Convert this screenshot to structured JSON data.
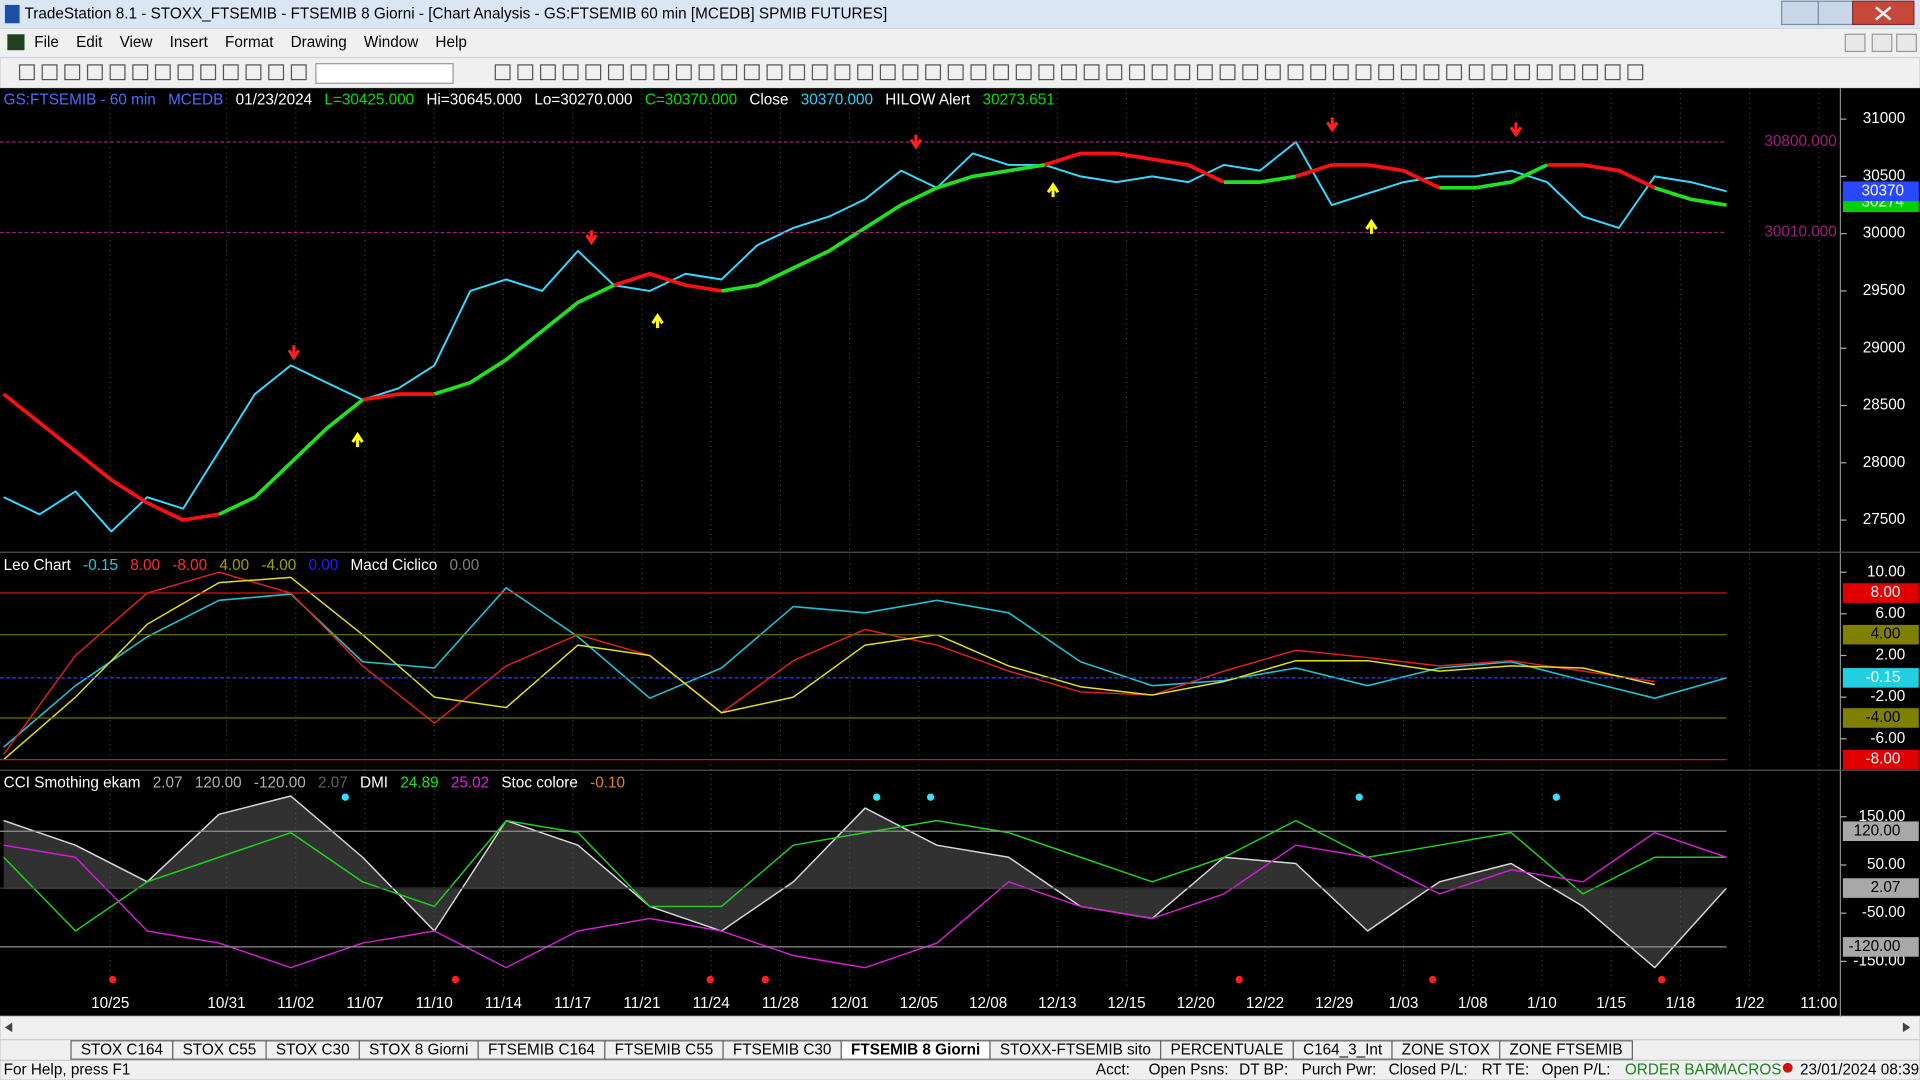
{
  "window": {
    "title": "TradeStation 8.1 - STOXX_FTSEMIB - FTSEMIB  8 Giorni - [Chart Analysis - GS:FTSEMIB  60 min  [MCEDB] SPMIB FUTURES]"
  },
  "menu": [
    "File",
    "Edit",
    "View",
    "Insert",
    "Format",
    "Drawing",
    "Window",
    "Help"
  ],
  "chart_data": [
    {
      "type": "line",
      "header": [
        {
          "text": "GS:FTSEMIB - 60 min",
          "color": "#4a6cff"
        },
        {
          "text": "MCEDB",
          "color": "#4a6cff"
        },
        {
          "text": "01/23/2024",
          "color": "#ffffff"
        },
        {
          "text": "L=30425.000",
          "color": "#00e000"
        },
        {
          "text": "Hi=30645.000",
          "color": "#ffffff"
        },
        {
          "text": "Lo=30270.000",
          "color": "#ffffff"
        },
        {
          "text": "C=30370.000",
          "color": "#00e000"
        },
        {
          "text": "Close",
          "color": "#ffffff"
        },
        {
          "text": "30370.000",
          "color": "#30d0ff"
        },
        {
          "text": "HILOW Alert",
          "color": "#ffffff"
        },
        {
          "text": "30273.651",
          "color": "#00e000"
        }
      ],
      "x_labels": [
        "10/25",
        "10/31",
        "11/02",
        "11/07",
        "11/10",
        "11/14",
        "11/17",
        "11/21",
        "11/24",
        "11/28",
        "12/01",
        "12/05",
        "12/08",
        "12/13",
        "12/15",
        "12/20",
        "12/22",
        "12/29",
        "1/03",
        "1/08",
        "1/10",
        "1/15",
        "1/18",
        "1/22",
        "11:00"
      ],
      "ylim": [
        27230,
        31270
      ],
      "yticks": [
        31000,
        30500,
        30000,
        29500,
        29000,
        28500,
        28000,
        27500
      ],
      "levels": [
        {
          "value": 30800,
          "label": "30800.000",
          "color": "#a0207a"
        },
        {
          "value": 30010,
          "label": "30010.000",
          "color": "#a0207a"
        }
      ],
      "price_boxes": [
        {
          "value": 30274,
          "color": "#00d000"
        },
        {
          "value": 30370,
          "color": "#2848ff"
        }
      ],
      "series": [
        {
          "name": "Close",
          "color": "#38d8ff",
          "width": 1.6,
          "values": [
            27700,
            27550,
            27750,
            27400,
            27700,
            27600,
            28100,
            28600,
            28850,
            28700,
            28550,
            28650,
            28850,
            29500,
            29600,
            29500,
            29850,
            29550,
            29500,
            29650,
            29600,
            29900,
            30050,
            30150,
            30300,
            30550,
            30400,
            30700,
            30600,
            30600,
            30500,
            30450,
            30500,
            30450,
            30600,
            30550,
            30800,
            30250,
            30350,
            30450,
            30500,
            30500,
            30550,
            30450,
            30150,
            30050,
            30500,
            30450,
            30370
          ]
        },
        {
          "name": "HILOW down",
          "color": "#ff1010",
          "width": 3,
          "values": [
            28600,
            28350,
            28100,
            27850,
            27650,
            27500,
            27550,
            null,
            null,
            null,
            28550,
            28600,
            28600,
            null,
            null,
            null,
            null,
            29550,
            29650,
            29550,
            29500,
            null,
            null,
            null,
            null,
            null,
            null,
            null,
            null,
            30600,
            30700,
            30700,
            30650,
            30600,
            30450,
            null,
            30500,
            30600,
            30600,
            30550,
            30400,
            null,
            null,
            30600,
            30600,
            30550,
            30400,
            null,
            null
          ]
        },
        {
          "name": "HILOW up",
          "color": "#20e020",
          "width": 3,
          "values": [
            null,
            null,
            null,
            null,
            null,
            null,
            27550,
            27700,
            28000,
            28300,
            28550,
            null,
            28600,
            28700,
            28900,
            29150,
            29400,
            29550,
            null,
            null,
            29500,
            29550,
            29700,
            29850,
            30050,
            30250,
            30400,
            30500,
            30550,
            30600,
            null,
            null,
            null,
            null,
            30450,
            30450,
            30500,
            null,
            null,
            null,
            30400,
            30400,
            30450,
            30600,
            null,
            null,
            30400,
            30300,
            30250
          ]
        }
      ]
    },
    {
      "type": "line",
      "header": [
        {
          "text": "Leo Chart",
          "color": "#ffffff"
        },
        {
          "text": "-0.15",
          "color": "#20d0d0"
        },
        {
          "text": "8.00",
          "color": "#ff3030"
        },
        {
          "text": "-8.00",
          "color": "#ff3030"
        },
        {
          "text": "4.00",
          "color": "#a0a000"
        },
        {
          "text": "-4.00",
          "color": "#a0a000"
        },
        {
          "text": "0.00",
          "color": "#2020ff"
        },
        {
          "text": "Macd Ciclico",
          "color": "#ffffff"
        },
        {
          "text": "0.00",
          "color": "#808080"
        }
      ],
      "ylim": [
        -8.9,
        11.8
      ],
      "yticks": [
        {
          "value": 10,
          "label": "10.00"
        },
        {
          "value": 6,
          "label": "6.00"
        },
        {
          "value": 2,
          "label": "2.00"
        },
        {
          "value": -2,
          "label": "-2.00"
        },
        {
          "value": -6,
          "label": "-6.00"
        }
      ],
      "levels": [
        {
          "value": 8,
          "label": "8.00",
          "color": "#e01010",
          "box": "#e00000",
          "text_color": "#ffffff"
        },
        {
          "value": 4,
          "label": "4.00",
          "color": "#707000",
          "box": "#808000",
          "text_color": "#000000"
        },
        {
          "value": -0.15,
          "label": "-0.15",
          "color": "#3040ff",
          "box": "#20d0e0",
          "text_color": "#ffffff",
          "dash": true
        },
        {
          "value": -4,
          "label": "-4.00",
          "color": "#707000",
          "box": "#808000",
          "text_color": "#000000"
        },
        {
          "value": -8,
          "label": "-8.00",
          "color": "#e01010",
          "box": "#e00000",
          "text_color": "#ffffff"
        }
      ],
      "series": [
        {
          "name": "Leo Chart",
          "color": "#20c0d0",
          "width": 1.3,
          "values": [
            -6.8,
            -0.9,
            3.8,
            7.3,
            7.9,
            1.4,
            0.8,
            8.5,
            3.8,
            -2.1,
            0.8,
            6.7,
            6.1,
            7.3,
            6.1,
            1.4,
            -0.9,
            -0.4,
            0.8,
            -0.9,
            0.8,
            1.4,
            -0.4,
            -2.1,
            -0.15
          ]
        },
        {
          "name": "Macd Ciclico",
          "color": "#e02020",
          "width": 1.2,
          "values": [
            -7.5,
            2,
            8,
            10,
            8,
            1,
            -4.5,
            1,
            4,
            2,
            -3.5,
            1.5,
            4.5,
            3,
            0.5,
            -1.5,
            -1.8,
            0.5,
            2.5,
            1.8,
            1,
            1.5,
            0.5,
            -0.5,
            null
          ]
        },
        {
          "name": "Signal",
          "color": "#e0e020",
          "width": 1.2,
          "values": [
            -8,
            -2,
            5,
            9,
            9.5,
            4,
            -2,
            -3,
            3,
            2,
            -3.5,
            -2,
            3,
            4,
            1,
            -1,
            -1.8,
            -0.5,
            1.5,
            1.5,
            0.5,
            1,
            0.8,
            -0.8,
            null
          ]
        }
      ]
    },
    {
      "type": "line",
      "header": [
        {
          "text": "CCI Smothing ekam",
          "color": "#ffffff"
        },
        {
          "text": "2.07",
          "color": "#b0b0b0"
        },
        {
          "text": "120.00",
          "color": "#b0b0b0"
        },
        {
          "text": "-120.00",
          "color": "#b0b0b0"
        },
        {
          "text": "2.07",
          "color": "#606060"
        },
        {
          "text": "DMI",
          "color": "#ffffff"
        },
        {
          "text": "24.89",
          "color": "#20e020"
        },
        {
          "text": "25.02",
          "color": "#e020e0"
        },
        {
          "text": "Stoc colore",
          "color": "#ffffff"
        },
        {
          "text": "-0.10",
          "color": "#e08020"
        }
      ],
      "ylim": [
        -203,
        244
      ],
      "yticks": [
        {
          "value": 150,
          "label": "150.00"
        },
        {
          "value": 50,
          "label": "50.00"
        },
        {
          "value": -50,
          "label": "-50.00"
        },
        {
          "value": -150,
          "label": "-150.00"
        }
      ],
      "levels": [
        {
          "value": 120,
          "label": "120.00",
          "color": "#909090",
          "box": "#a8a8a8",
          "text_color": "#000000"
        },
        {
          "value": 2.07,
          "label": "2.07",
          "color": "#404040",
          "box": "#a8a8a8",
          "text_color": "#000000"
        },
        {
          "value": -120,
          "label": "-120.00",
          "color": "#909090",
          "box": "#a8a8a8",
          "text_color": "#000000"
        }
      ],
      "series": [
        {
          "name": "CCI",
          "color": "#d8d8d8",
          "width": 1.2,
          "area": true,
          "values": [
            142,
            91,
            15,
            155,
            193,
            66,
            -87,
            142,
            91,
            -36,
            -87,
            15,
            168,
            91,
            66,
            -36,
            -61,
            66,
            53,
            -87,
            15,
            53,
            -36,
            -163,
            2.07
          ]
        },
        {
          "name": "DMI+",
          "color": "#20d020",
          "width": 1.2,
          "values": [
            66,
            -87,
            15,
            66,
            117,
            15,
            -36,
            142,
            117,
            -36,
            -36,
            91,
            117,
            142,
            117,
            66,
            15,
            66,
            142,
            66,
            91,
            117,
            -10,
            66,
            66
          ]
        },
        {
          "name": "DMI-",
          "color": "#d020d0",
          "width": 1.2,
          "values": [
            91,
            66,
            -87,
            -112,
            -163,
            -112,
            -87,
            -163,
            -87,
            -61,
            -87,
            -138,
            -163,
            -112,
            15,
            -36,
            -61,
            -10,
            91,
            66,
            -10,
            40,
            15,
            117,
            66
          ]
        }
      ]
    }
  ],
  "tabs": [
    "STOX C164",
    "STOX C55",
    "STOX  C30",
    "STOX  8 Giorni",
    "FTSEMIB C164",
    "FTSEMIB C55",
    "FTSEMIB C30",
    "FTSEMIB  8 Giorni",
    "STOXX-FTSEMIB sito",
    "PERCENTUALE",
    "C164_3_Int",
    "ZONE STOX",
    "ZONE FTSEMIB"
  ],
  "active_tab": 7,
  "status": {
    "help": "For Help, press F1",
    "fields": [
      "Acct:",
      "Open Psns:",
      "DT BP:",
      "Purch Pwr:",
      "Closed P/L:",
      "RT TE:",
      "Open P/L:"
    ],
    "order_bar": "ORDER BAR",
    "macros": "MACROS",
    "datetime": "23/01/2024 08:39"
  }
}
